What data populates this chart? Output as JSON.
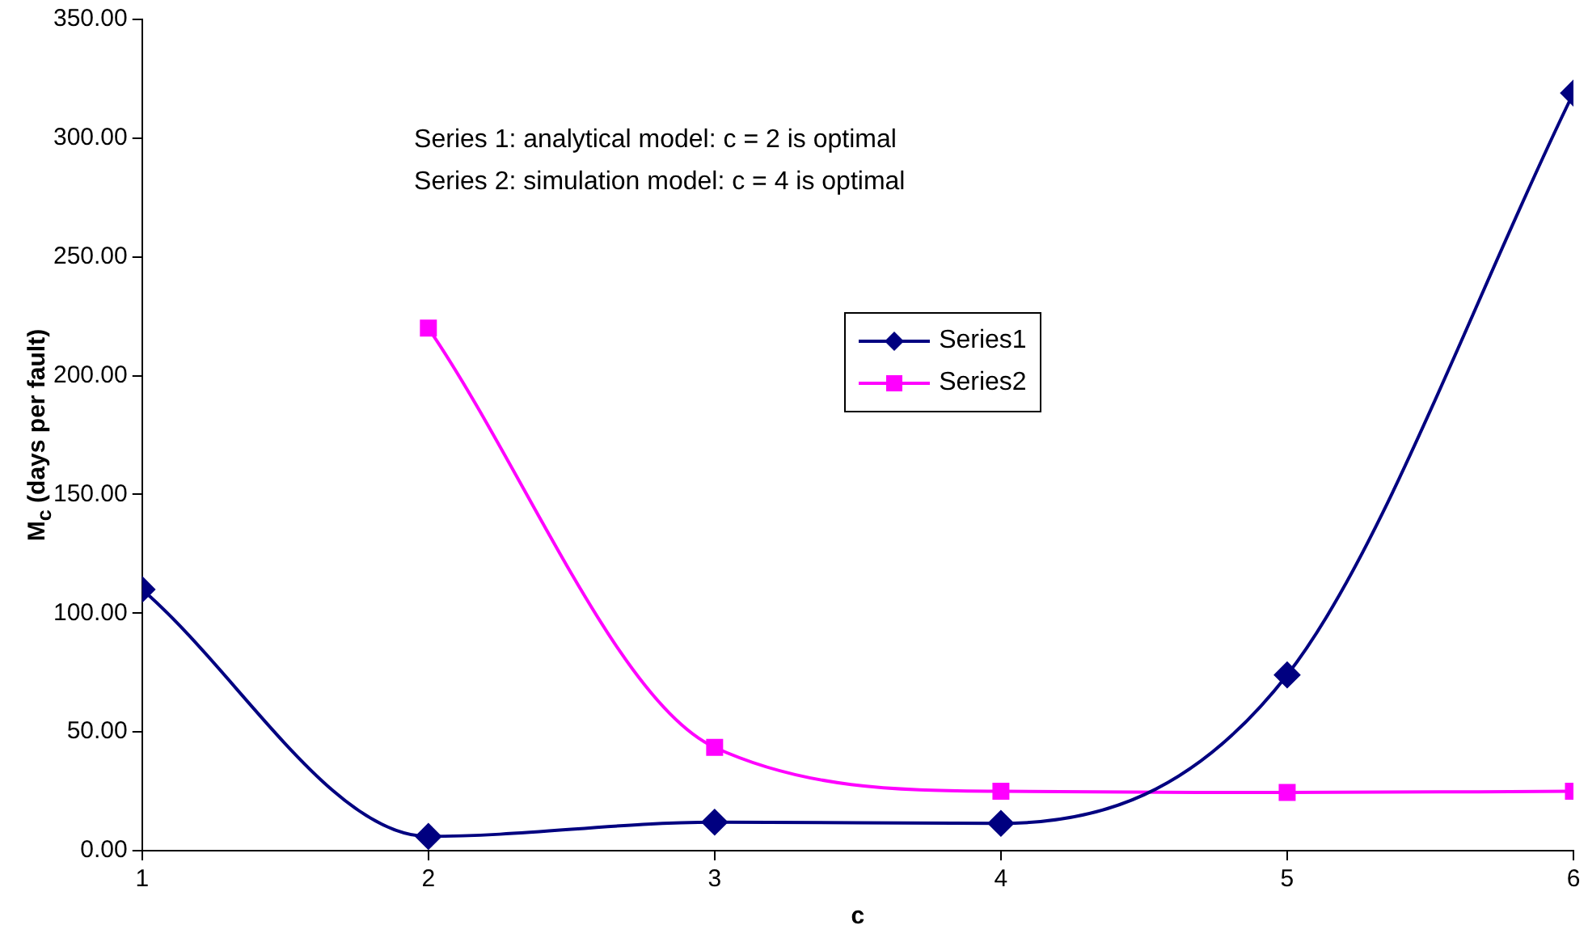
{
  "chart_data": {
    "type": "line",
    "xlabel": "c",
    "ylabel": "M$_{c}$ (days per fault)",
    "x": [
      1,
      2,
      3,
      4,
      5,
      6
    ],
    "series": [
      {
        "name": "Series1",
        "color": "#000080",
        "marker": "diamond",
        "values": [
          110,
          6,
          12,
          11.5,
          74,
          319
        ]
      },
      {
        "name": "Series2",
        "color": "#ff00ff",
        "marker": "square",
        "x": [
          2,
          3,
          4,
          5,
          6
        ],
        "values": [
          220,
          43.5,
          25,
          24.5,
          25
        ]
      }
    ],
    "xlim": [
      1,
      6
    ],
    "xticks": [
      1,
      2,
      3,
      4,
      5,
      6
    ],
    "ylim": [
      0,
      350
    ],
    "yticks": [
      {
        "value": 0,
        "label": "0.00"
      },
      {
        "value": 50,
        "label": "50.00"
      },
      {
        "value": 100,
        "label": "100.00"
      },
      {
        "value": 150,
        "label": "150.00"
      },
      {
        "value": 200,
        "label": "200.00"
      },
      {
        "value": 250,
        "label": "250.00"
      },
      {
        "value": 300,
        "label": "300.00"
      },
      {
        "value": 350,
        "label": "350.00"
      }
    ],
    "grid": false,
    "legend": "center",
    "line_style": "solid",
    "annotations": [
      "Series 1: analytical model: c = 2 is optimal",
      "Series 2: simulation model: c = 4 is optimal"
    ]
  }
}
